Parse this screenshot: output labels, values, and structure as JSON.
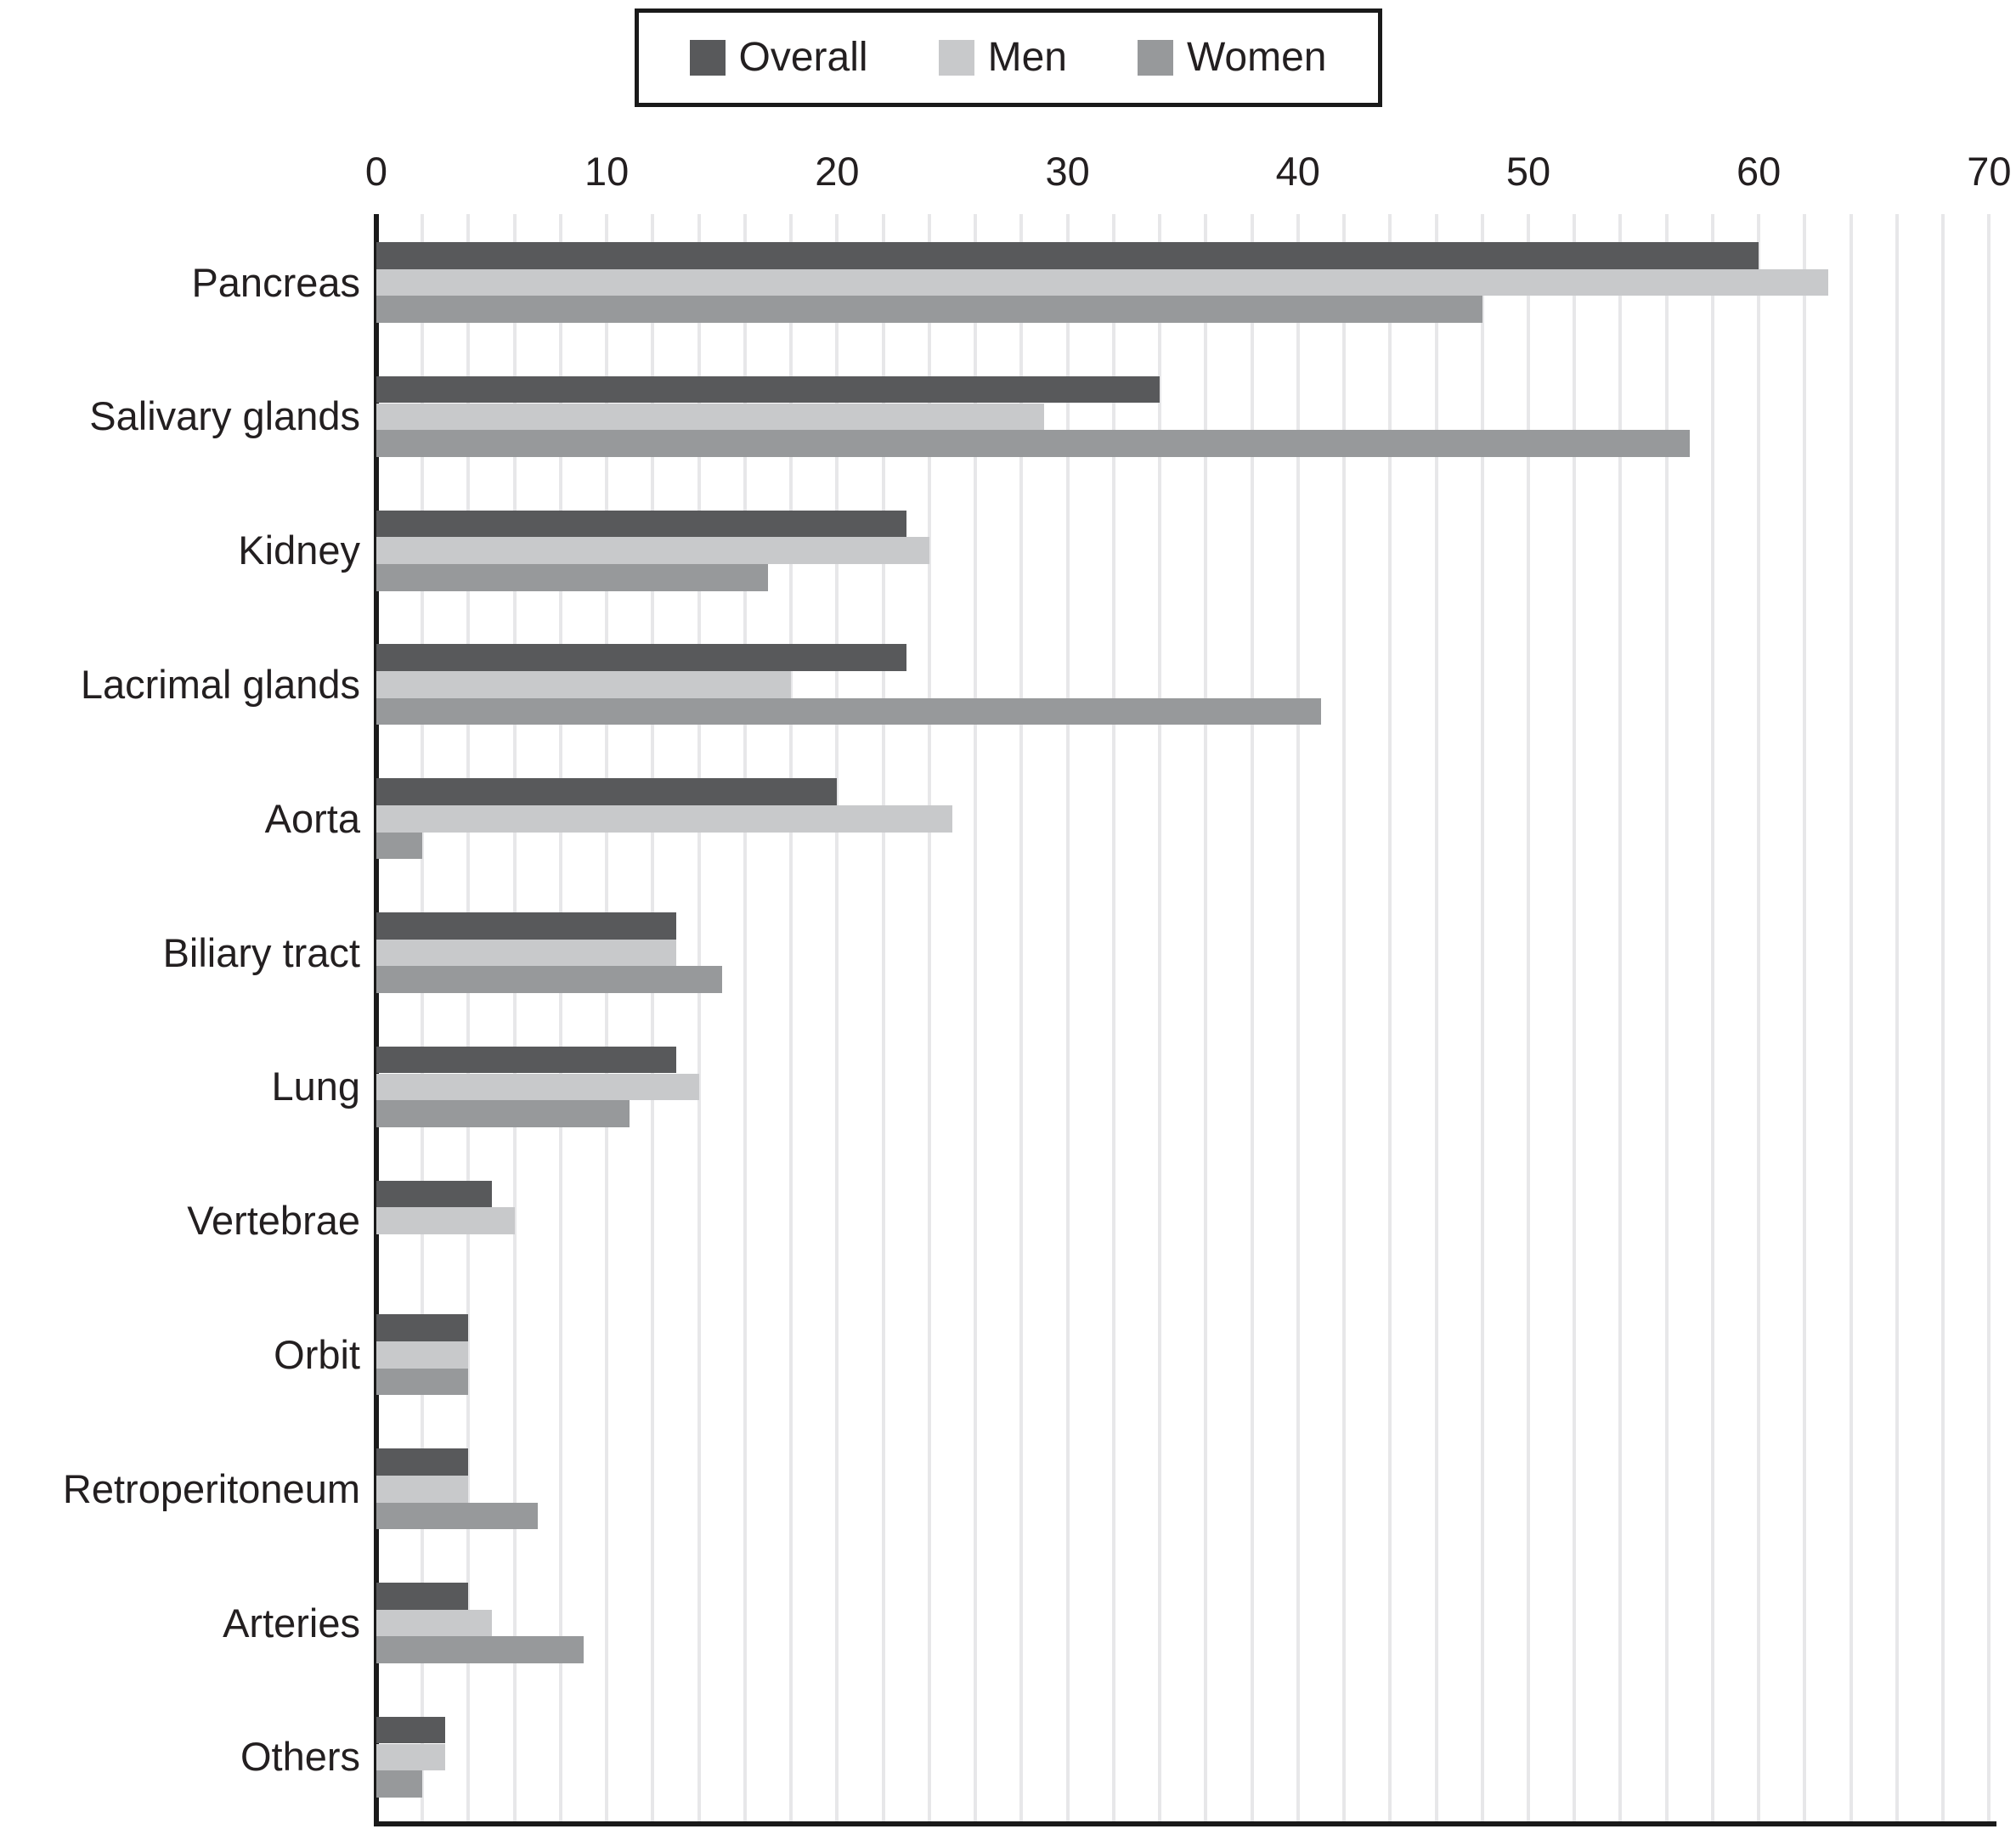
{
  "chart_data": {
    "type": "bar",
    "orientation": "horizontal",
    "title": "",
    "xlabel": "",
    "ylabel": "",
    "categories": [
      "Pancreas",
      "Salivary glands",
      "Kidney",
      "Lacrimal glands",
      "Aorta",
      "Biliary tract",
      "Lung",
      "Vertebrae",
      "Orbit",
      "Retroperitoneum",
      "Arteries",
      "Others"
    ],
    "series": [
      {
        "name": "Overall",
        "color": "#58595b",
        "values": [
          60,
          34,
          23,
          23,
          20,
          13,
          13,
          5,
          4,
          4,
          4,
          3
        ]
      },
      {
        "name": "Men",
        "color": "#c8c9cb",
        "values": [
          63,
          29,
          24,
          18,
          25,
          13,
          14,
          6,
          4,
          4,
          5,
          3
        ]
      },
      {
        "name": "Women",
        "color": "#97999b",
        "values": [
          48,
          57,
          17,
          41,
          2,
          15,
          11,
          0,
          4,
          7,
          9,
          2
        ]
      }
    ],
    "xlim": [
      0,
      70
    ],
    "x_ticks": [
      0,
      10,
      20,
      30,
      40,
      50,
      60,
      70
    ],
    "minor_grid_step": 2,
    "grid": true,
    "legend_position": "top",
    "axis_color": "#1a1a1a",
    "gridline_color": "#e7e7e9",
    "text_color": "#231f20",
    "background": "#ffffff"
  }
}
